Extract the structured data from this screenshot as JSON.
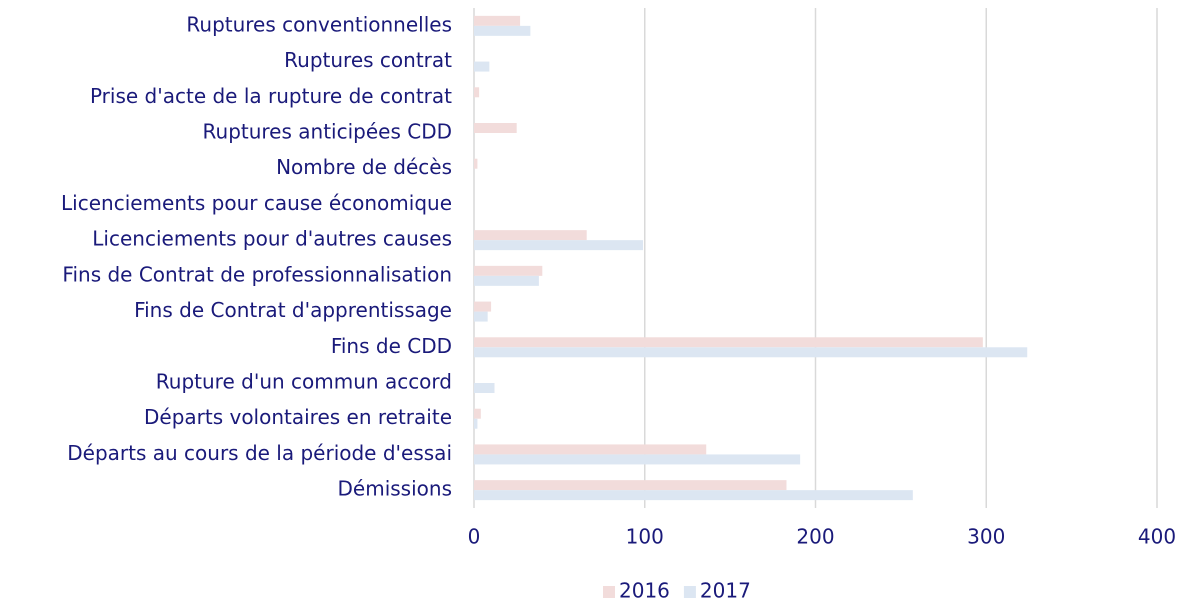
{
  "chart_data": {
    "type": "barh",
    "categories": [
      "Ruptures conventionnelles",
      "Ruptures contrat",
      "Prise d'acte de la rupture de contrat",
      "Ruptures anticipées CDD",
      "Nombre de décès",
      "Licenciements pour cause économique",
      "Licenciements pour d'autres causes",
      "Fins de Contrat de professionnalisation",
      "Fins de Contrat d'apprentissage",
      "Fins de CDD",
      "Rupture d'un commun accord",
      "Départs volontaires en retraite",
      "Départs au cours de la période d'essai",
      "Démissions"
    ],
    "series": [
      {
        "name": "2016",
        "color": "#f2dcdb",
        "values": [
          27,
          0,
          3,
          25,
          2,
          0,
          66,
          40,
          10,
          298,
          0,
          4,
          136,
          183
        ]
      },
      {
        "name": "2017",
        "color": "#dce6f2",
        "values": [
          33,
          9,
          0,
          0,
          0,
          0,
          99,
          38,
          8,
          324,
          12,
          2,
          191,
          257
        ]
      }
    ],
    "xlim": [
      0,
      400
    ],
    "xticks": [
      0,
      100,
      200,
      300,
      400
    ],
    "grid": true,
    "legend": "bottom"
  }
}
